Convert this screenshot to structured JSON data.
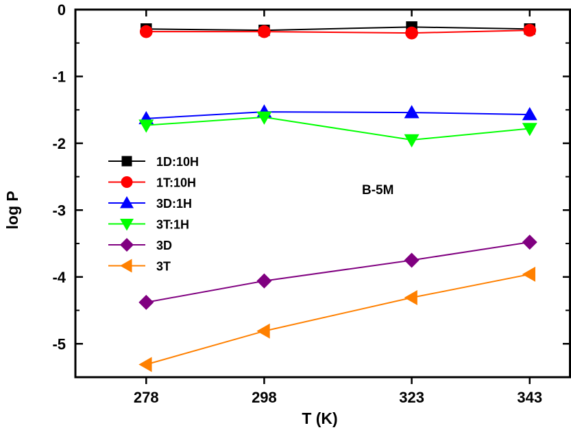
{
  "chart_data": {
    "type": "line",
    "title": "",
    "xlabel": "T (K)",
    "ylabel": "log P",
    "annotation": "B-5M",
    "x": [
      278,
      298,
      323,
      343
    ],
    "x_tick_labels": [
      "278",
      "298",
      "323",
      "343"
    ],
    "xlim": [
      266,
      350
    ],
    "ylim": [
      -5.5,
      0
    ],
    "y_ticks": [
      0,
      -1,
      -2,
      -3,
      -4,
      -5
    ],
    "y_tick_labels": [
      "0",
      "-1",
      "-2",
      "-3",
      "-4",
      "-5"
    ],
    "grid": false,
    "legend_position": "left",
    "series": [
      {
        "name": "1D:10H",
        "color": "#000000",
        "marker": "square",
        "values": [
          -0.29,
          -0.31,
          -0.26,
          -0.29
        ]
      },
      {
        "name": "1T:10H",
        "color": "#ff0000",
        "marker": "circle",
        "values": [
          -0.33,
          -0.33,
          -0.35,
          -0.31
        ]
      },
      {
        "name": "3D:1H",
        "color": "#0000ff",
        "marker": "triangle-up",
        "values": [
          -1.63,
          -1.53,
          -1.54,
          -1.57
        ]
      },
      {
        "name": "3T:1H",
        "color": "#00ff00",
        "marker": "triangle-down",
        "values": [
          -1.73,
          -1.61,
          -1.95,
          -1.78
        ]
      },
      {
        "name": "3D",
        "color": "#800080",
        "marker": "diamond",
        "values": [
          -4.38,
          -4.06,
          -3.75,
          -3.48
        ]
      },
      {
        "name": "3T",
        "color": "#ff8000",
        "marker": "triangle-left",
        "values": [
          -5.31,
          -4.81,
          -4.31,
          -3.96
        ]
      }
    ]
  }
}
